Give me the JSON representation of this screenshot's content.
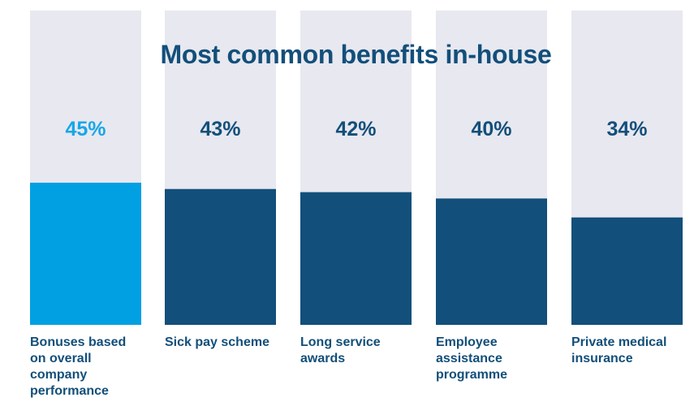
{
  "chart_data": {
    "type": "bar",
    "title": "Most common benefits in-house",
    "categories": [
      "Bonuses based on overall company performance",
      "Sick pay scheme",
      "Long service awards",
      "Employee assistance programme",
      "Private medical insurance"
    ],
    "values": [
      45,
      43,
      42,
      40,
      34
    ],
    "value_labels": [
      "45%",
      "43%",
      "42%",
      "40%",
      "34%"
    ],
    "ylim": [
      0,
      100
    ],
    "grid": false,
    "legend": "none",
    "colors": {
      "highlight": "#00a0e3",
      "bar": "#124f7a",
      "track": "#e8e8f0",
      "highlight_text": "#16a7e8",
      "text": "#124f7a"
    }
  }
}
